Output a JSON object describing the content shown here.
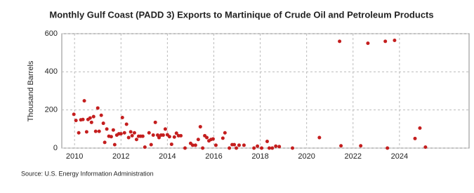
{
  "chart_data": {
    "type": "scatter",
    "title": "Monthly Gulf Coast (PADD 3) Exports to Martinique of Crude Oil and Petroleum Products",
    "y_label": "Thousand Barrels",
    "source": "Source: U.S. Energy Information Administration",
    "color": "#c41e1e",
    "grid": true,
    "xlim": [
      2009.45,
      2027.0
    ],
    "xticks": [
      2010,
      2012,
      2014,
      2016,
      2018,
      2020,
      2022,
      2024
    ],
    "ylim": [
      0,
      600
    ],
    "yticks": [
      0,
      200,
      400,
      600
    ],
    "x": [
      2009.97,
      2010.06,
      2010.18,
      2010.27,
      2010.36,
      2010.42,
      2010.52,
      2010.58,
      2010.67,
      2010.73,
      2010.82,
      2010.91,
      2011.0,
      2011.06,
      2011.15,
      2011.24,
      2011.3,
      2011.39,
      2011.48,
      2011.58,
      2011.67,
      2011.73,
      2011.82,
      2011.91,
      2012.0,
      2012.06,
      2012.15,
      2012.24,
      2012.33,
      2012.42,
      2012.48,
      2012.58,
      2012.67,
      2012.76,
      2012.85,
      2012.94,
      2013.03,
      2013.21,
      2013.3,
      2013.39,
      2013.48,
      2013.58,
      2013.64,
      2013.73,
      2013.82,
      2013.91,
      2014.0,
      2014.09,
      2014.18,
      2014.3,
      2014.39,
      2014.48,
      2014.58,
      2014.76,
      2015.0,
      2015.09,
      2015.21,
      2015.33,
      2015.42,
      2015.52,
      2015.61,
      2015.7,
      2015.79,
      2015.88,
      2015.97,
      2016.09,
      2016.39,
      2016.48,
      2016.67,
      2016.79,
      2016.88,
      2016.97,
      2017.09,
      2017.3,
      2017.73,
      2017.88,
      2018.06,
      2018.3,
      2018.39,
      2018.52,
      2018.67,
      2018.82,
      2019.39,
      2020.55,
      2021.42,
      2021.48,
      2022.33,
      2022.64,
      2023.39,
      2023.48,
      2023.79,
      2024.67,
      2024.88,
      2025.12
    ],
    "values": [
      177,
      145,
      80,
      148,
      150,
      248,
      85,
      150,
      158,
      135,
      165,
      88,
      210,
      88,
      172,
      130,
      30,
      100,
      62,
      60,
      95,
      18,
      68,
      75,
      75,
      160,
      80,
      125,
      55,
      85,
      65,
      80,
      45,
      62,
      62,
      62,
      5,
      80,
      18,
      68,
      135,
      68,
      55,
      68,
      68,
      100,
      70,
      60,
      20,
      58,
      78,
      65,
      65,
      0,
      25,
      15,
      15,
      45,
      112,
      0,
      65,
      55,
      38,
      45,
      48,
      15,
      52,
      80,
      0,
      18,
      18,
      0,
      15,
      15,
      0,
      10,
      0,
      35,
      0,
      0,
      10,
      8,
      0,
      55,
      560,
      12,
      12,
      550,
      560,
      0,
      565,
      50,
      105,
      5
    ]
  }
}
